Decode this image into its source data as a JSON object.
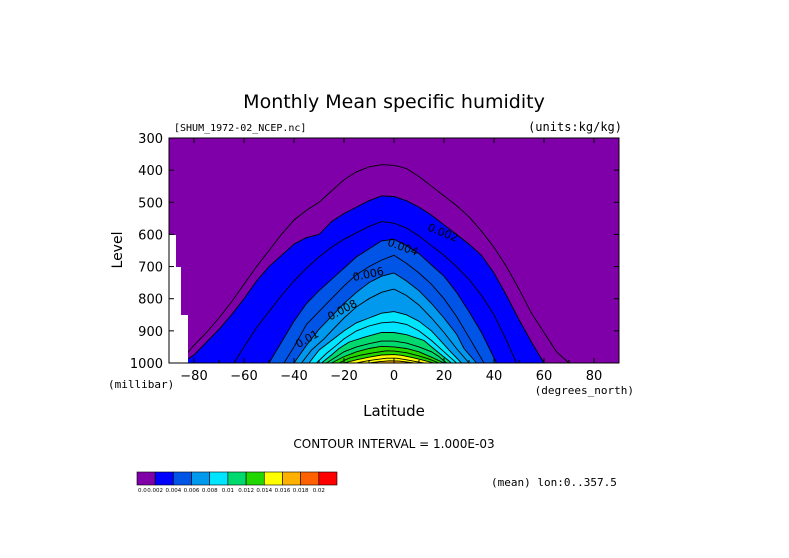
{
  "chart_data": {
    "type": "contour",
    "title": "Monthly Mean specific humidity",
    "source_label": "[SHUM_1972-02_NCEP.nc]",
    "units_label": "(units:kg/kg)",
    "xlabel": "Latitude",
    "x_units": "(degrees_north)",
    "ylabel": "Level",
    "y_units": "(millibar)",
    "xlim": [
      -90,
      90
    ],
    "ylim": [
      1000,
      300
    ],
    "x_ticks": [
      -80,
      -60,
      -40,
      -20,
      0,
      20,
      40,
      60,
      80
    ],
    "y_ticks": [
      300,
      400,
      500,
      600,
      700,
      800,
      900,
      1000
    ],
    "contour_interval_text": "CONTOUR INTERVAL = 1.000E-03",
    "mean_text": "(mean) lon:0..357.5",
    "contour_labels": [
      {
        "text": "0.002",
        "lat": 19,
        "level": 605
      },
      {
        "text": "0.004",
        "lat": 3,
        "level": 650
      },
      {
        "text": "0.006",
        "lat": -10,
        "level": 735
      },
      {
        "text": "0.008",
        "lat": -20,
        "level": 845
      },
      {
        "text": "0.01",
        "lat": -34,
        "level": 935
      }
    ],
    "colorbar": {
      "colors": [
        "#7f00a8",
        "#0000ff",
        "#0055e6",
        "#0099ee",
        "#00e5ff",
        "#00d96e",
        "#22d700",
        "#ffff00",
        "#ffb000",
        "#ff6000",
        "#ff0000"
      ],
      "labels": [
        "0.0",
        "0.002",
        "0.004",
        "0.006",
        "0.008",
        "0.01",
        "0.012",
        "0.014",
        "0.016",
        "0.018",
        "0.02"
      ]
    },
    "contour_edges": [
      {
        "value": 0.001,
        "min_level": 382,
        "left": [
          [
            -88,
            1000
          ],
          [
            -85,
            990
          ],
          [
            -80,
            945
          ],
          [
            -75,
            905
          ],
          [
            -70,
            860
          ],
          [
            -65,
            810
          ],
          [
            -60,
            755
          ],
          [
            -55,
            700
          ],
          [
            -50,
            650
          ],
          [
            -45,
            600
          ],
          [
            -40,
            555
          ],
          [
            -35,
            525
          ],
          [
            -30,
            500
          ],
          [
            -25,
            465
          ],
          [
            -20,
            430
          ],
          [
            -15,
            405
          ],
          [
            -10,
            390
          ],
          [
            -5,
            383
          ]
        ],
        "right": [
          [
            70,
            1000
          ],
          [
            65,
            965
          ],
          [
            60,
            905
          ],
          [
            55,
            845
          ],
          [
            50,
            770
          ],
          [
            45,
            700
          ],
          [
            40,
            640
          ],
          [
            35,
            590
          ],
          [
            30,
            545
          ],
          [
            25,
            510
          ],
          [
            20,
            480
          ],
          [
            15,
            450
          ],
          [
            10,
            420
          ],
          [
            5,
            395
          ],
          [
            0,
            385
          ]
        ]
      },
      {
        "value": 0.002,
        "min_level": 480,
        "left": [
          [
            -85,
            1000
          ],
          [
            -80,
            975
          ],
          [
            -75,
            935
          ],
          [
            -70,
            895
          ],
          [
            -65,
            850
          ],
          [
            -60,
            800
          ],
          [
            -55,
            745
          ],
          [
            -50,
            700
          ],
          [
            -45,
            665
          ],
          [
            -40,
            630
          ],
          [
            -35,
            610
          ],
          [
            -30,
            600
          ],
          [
            -25,
            560
          ],
          [
            -20,
            535
          ],
          [
            -15,
            515
          ],
          [
            -10,
            495
          ],
          [
            -5,
            480
          ]
        ],
        "right": [
          [
            60,
            1000
          ],
          [
            55,
            935
          ],
          [
            50,
            865
          ],
          [
            45,
            790
          ],
          [
            40,
            720
          ],
          [
            35,
            665
          ],
          [
            30,
            630
          ],
          [
            25,
            600
          ],
          [
            20,
            570
          ],
          [
            15,
            540
          ],
          [
            10,
            515
          ],
          [
            5,
            495
          ],
          [
            0,
            482
          ]
        ]
      },
      {
        "value": 0.003,
        "min_level": 555,
        "left": [
          [
            -64,
            1000
          ],
          [
            -60,
            950
          ],
          [
            -55,
            890
          ],
          [
            -50,
            840
          ],
          [
            -45,
            790
          ],
          [
            -40,
            745
          ],
          [
            -35,
            705
          ],
          [
            -30,
            670
          ],
          [
            -25,
            640
          ],
          [
            -20,
            615
          ],
          [
            -15,
            595
          ],
          [
            -10,
            575
          ],
          [
            -5,
            560
          ]
        ],
        "right": [
          [
            49,
            1000
          ],
          [
            45,
            930
          ],
          [
            40,
            850
          ],
          [
            35,
            790
          ],
          [
            30,
            740
          ],
          [
            25,
            700
          ],
          [
            20,
            665
          ],
          [
            15,
            635
          ],
          [
            10,
            605
          ],
          [
            5,
            580
          ],
          [
            0,
            565
          ]
        ]
      },
      {
        "value": 0.004,
        "min_level": 610,
        "left": [
          [
            -50,
            1000
          ],
          [
            -45,
            935
          ],
          [
            -40,
            870
          ],
          [
            -35,
            815
          ],
          [
            -30,
            775
          ],
          [
            -25,
            740
          ],
          [
            -20,
            705
          ],
          [
            -15,
            670
          ],
          [
            -10,
            645
          ],
          [
            -5,
            620
          ]
        ],
        "right": [
          [
            41,
            1000
          ],
          [
            35,
            905
          ],
          [
            30,
            840
          ],
          [
            25,
            780
          ],
          [
            20,
            730
          ],
          [
            15,
            695
          ],
          [
            10,
            660
          ],
          [
            5,
            635
          ],
          [
            0,
            615
          ]
        ]
      },
      {
        "value": 0.005,
        "min_level": 660,
        "left": [
          [
            -44,
            1000
          ],
          [
            -40,
            950
          ],
          [
            -35,
            880
          ],
          [
            -30,
            840
          ],
          [
            -25,
            800
          ],
          [
            -20,
            760
          ],
          [
            -15,
            725
          ],
          [
            -10,
            700
          ],
          [
            -5,
            680
          ]
        ],
        "right": [
          [
            36,
            1000
          ],
          [
            30,
            920
          ],
          [
            25,
            855
          ],
          [
            20,
            800
          ],
          [
            15,
            755
          ],
          [
            10,
            720
          ],
          [
            5,
            690
          ],
          [
            0,
            665
          ]
        ]
      },
      {
        "value": 0.006,
        "min_level": 710,
        "left": [
          [
            -40,
            1000
          ],
          [
            -35,
            945
          ],
          [
            -30,
            895
          ],
          [
            -25,
            855
          ],
          [
            -20,
            815
          ],
          [
            -15,
            780
          ],
          [
            -10,
            750
          ],
          [
            -5,
            730
          ]
        ],
        "right": [
          [
            33,
            1000
          ],
          [
            28,
            955
          ],
          [
            25,
            910
          ],
          [
            20,
            860
          ],
          [
            15,
            815
          ],
          [
            10,
            775
          ],
          [
            5,
            745
          ],
          [
            0,
            720
          ]
        ]
      },
      {
        "value": 0.007,
        "min_level": 765,
        "left": [
          [
            -37,
            1000
          ],
          [
            -33,
            960
          ],
          [
            -28,
            925
          ],
          [
            -25,
            900
          ],
          [
            -20,
            860
          ],
          [
            -15,
            825
          ],
          [
            -10,
            800
          ],
          [
            -5,
            780
          ]
        ],
        "right": [
          [
            30,
            1000
          ],
          [
            25,
            955
          ],
          [
            20,
            905
          ],
          [
            15,
            860
          ],
          [
            10,
            820
          ],
          [
            5,
            790
          ],
          [
            0,
            770
          ]
        ]
      },
      {
        "value": 0.008,
        "min_level": 835,
        "left": [
          [
            -34,
            1000
          ],
          [
            -30,
            960
          ],
          [
            -25,
            930
          ],
          [
            -20,
            900
          ],
          [
            -15,
            875
          ],
          [
            -10,
            860
          ],
          [
            -5,
            845
          ]
        ],
        "right": [
          [
            27,
            1000
          ],
          [
            22,
            960
          ],
          [
            18,
            925
          ],
          [
            15,
            900
          ],
          [
            10,
            870
          ],
          [
            5,
            850
          ],
          [
            0,
            840
          ]
        ]
      },
      {
        "value": 0.009,
        "min_level": 870,
        "left": [
          [
            -31,
            1000
          ],
          [
            -27,
            970
          ],
          [
            -23,
            945
          ],
          [
            -20,
            925
          ],
          [
            -15,
            900
          ],
          [
            -10,
            885
          ],
          [
            -5,
            875
          ]
        ],
        "right": [
          [
            25,
            1000
          ],
          [
            20,
            965
          ],
          [
            15,
            930
          ],
          [
            10,
            900
          ],
          [
            5,
            880
          ],
          [
            0,
            872
          ]
        ]
      },
      {
        "value": 0.01,
        "min_level": 900,
        "left": [
          [
            -29,
            1000
          ],
          [
            -25,
            975
          ],
          [
            -22,
            955
          ],
          [
            -18,
            935
          ],
          [
            -12,
            920
          ],
          [
            -5,
            905
          ]
        ],
        "right": [
          [
            23,
            1000
          ],
          [
            19,
            975
          ],
          [
            15,
            950
          ],
          [
            12,
            930
          ],
          [
            5,
            912
          ],
          [
            0,
            905
          ]
        ]
      },
      {
        "value": 0.011,
        "min_level": 928,
        "left": [
          [
            -27,
            1000
          ],
          [
            -23,
            980
          ],
          [
            -20,
            965
          ],
          [
            -15,
            950
          ],
          [
            -10,
            940
          ],
          [
            -5,
            932
          ]
        ],
        "right": [
          [
            21,
            1000
          ],
          [
            18,
            980
          ],
          [
            15,
            965
          ],
          [
            10,
            950
          ],
          [
            5,
            938
          ],
          [
            0,
            932
          ]
        ]
      },
      {
        "value": 0.012,
        "min_level": 945,
        "left": [
          [
            -25,
            1000
          ],
          [
            -20,
            980
          ],
          [
            -15,
            965
          ],
          [
            -10,
            955
          ],
          [
            -5,
            948
          ]
        ],
        "right": [
          [
            20,
            1000
          ],
          [
            15,
            982
          ],
          [
            10,
            965
          ],
          [
            5,
            955
          ],
          [
            0,
            950
          ]
        ]
      },
      {
        "value": 0.013,
        "min_level": 960,
        "left": [
          [
            -22,
            1000
          ],
          [
            -18,
            985
          ],
          [
            -13,
            975
          ],
          [
            -8,
            968
          ],
          [
            -3,
            962
          ]
        ],
        "right": [
          [
            18,
            1000
          ],
          [
            14,
            988
          ],
          [
            10,
            978
          ],
          [
            5,
            968
          ],
          [
            0,
            963
          ]
        ]
      },
      {
        "value": 0.014,
        "min_level": 972,
        "left": [
          [
            -20,
            1000
          ],
          [
            -15,
            990
          ],
          [
            -10,
            982
          ],
          [
            -5,
            975
          ]
        ],
        "right": [
          [
            16,
            1000
          ],
          [
            12,
            992
          ],
          [
            8,
            984
          ],
          [
            3,
            976
          ],
          [
            0,
            974
          ]
        ]
      },
      {
        "value": 0.015,
        "min_level": 983,
        "left": [
          [
            -15,
            1000
          ],
          [
            -12,
            995
          ],
          [
            -8,
            990
          ],
          [
            -3,
            985
          ]
        ],
        "right": [
          [
            12,
            1000
          ],
          [
            9,
            996
          ],
          [
            5,
            990
          ],
          [
            1,
            985
          ]
        ]
      },
      {
        "value": 0.016,
        "min_level": 992,
        "left": [
          [
            -10,
            1000
          ],
          [
            -6,
            996
          ],
          [
            -2,
            993
          ]
        ],
        "right": [
          [
            8,
            1000
          ],
          [
            5,
            997
          ],
          [
            2,
            994
          ]
        ]
      }
    ]
  }
}
